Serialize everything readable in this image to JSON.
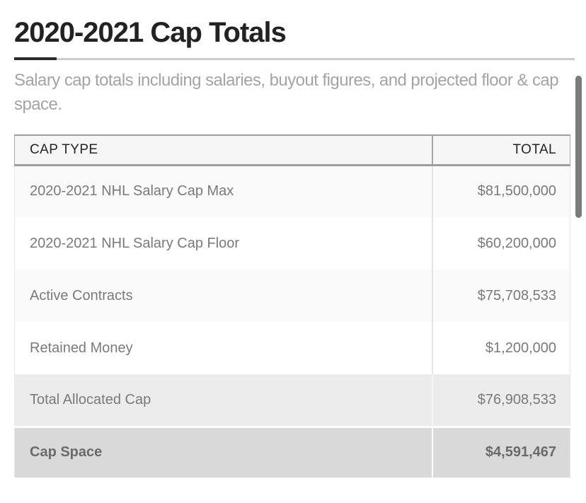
{
  "header": {
    "title": "2020-2021 Cap Totals",
    "subtitle": "Salary cap totals including salaries, buyout figures, and projected floor & cap space."
  },
  "table": {
    "columns": [
      "CAP TYPE",
      "TOTAL"
    ],
    "rows": [
      {
        "cap_type": "2020-2021 NHL Salary Cap Max",
        "total": "$81,500,000",
        "kind": "data"
      },
      {
        "cap_type": "2020-2021 NHL Salary Cap Floor",
        "total": "$60,200,000",
        "kind": "data"
      },
      {
        "cap_type": "Active Contracts",
        "total": "$75,708,533",
        "kind": "data"
      },
      {
        "cap_type": "Retained Money",
        "total": "$1,200,000",
        "kind": "data"
      },
      {
        "cap_type": "Total Allocated Cap",
        "total": "$76,908,533",
        "kind": "subtotal"
      },
      {
        "cap_type": "Cap Space",
        "total": "$4,591,467",
        "kind": "total"
      }
    ]
  },
  "colors": {
    "title_text": "#222222",
    "subtitle_text": "#a4a4a4",
    "header_border": "#9d9d9d",
    "cell_text": "#7a7a7a",
    "stripe_row_bg": "#fafafa",
    "subtotal_row_bg": "#ececec",
    "total_row_bg": "#d9d9d9",
    "total_row_text": "#6a6a6a",
    "scrollbar": "#7b7b7b"
  }
}
